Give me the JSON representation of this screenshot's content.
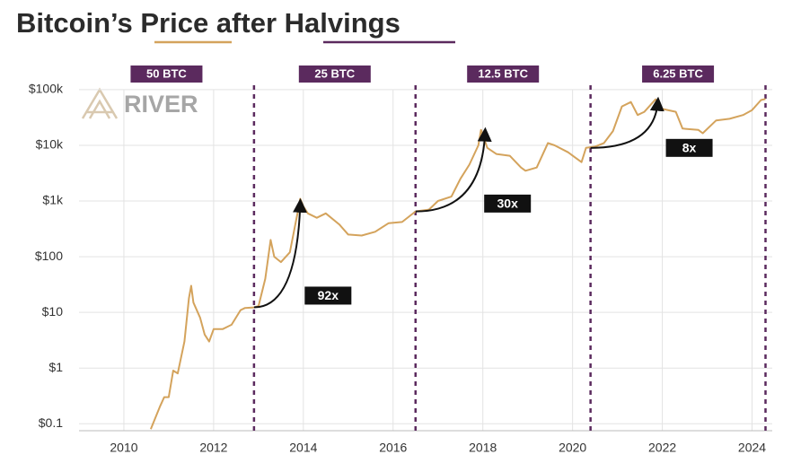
{
  "chart_data": {
    "type": "line",
    "title": "Bitcoin’s Price after Halvings",
    "logo": "RIVER",
    "log_y": true,
    "grid": true,
    "xlim": [
      2009.0,
      2024.45
    ],
    "xticks": [
      2010,
      2012,
      2014,
      2016,
      2018,
      2020,
      2022,
      2024
    ],
    "ylim": [
      0.075,
      150000
    ],
    "yticks": [
      {
        "value": 0.1,
        "label": "$0.1"
      },
      {
        "value": 1,
        "label": "$1"
      },
      {
        "value": 10,
        "label": "$10"
      },
      {
        "value": 100,
        "label": "$100"
      },
      {
        "value": 1000,
        "label": "$1k"
      },
      {
        "value": 10000,
        "label": "$10k"
      },
      {
        "value": 100000,
        "label": "$100k"
      }
    ],
    "halvings": {
      "x": [
        2012.9,
        2016.5,
        2020.4,
        2024.3
      ],
      "labels": [
        "50 BTC",
        "25 BTC",
        "12.5 BTC",
        "6.25 BTC"
      ],
      "color": "#5b2a5e"
    },
    "series": [
      {
        "name": "Price",
        "color": "#d4a35c",
        "x": [
          2010.6,
          2010.8,
          2010.9,
          2011.0,
          2011.1,
          2011.2,
          2011.35,
          2011.45,
          2011.5,
          2011.55,
          2011.7,
          2011.8,
          2011.9,
          2012.0,
          2012.2,
          2012.4,
          2012.6,
          2012.7,
          2012.9,
          2013.0,
          2013.15,
          2013.27,
          2013.35,
          2013.5,
          2013.7,
          2013.9,
          2013.93,
          2014.0,
          2014.1,
          2014.3,
          2014.5,
          2014.8,
          2015.0,
          2015.3,
          2015.6,
          2015.9,
          2016.2,
          2016.5,
          2016.8,
          2017.0,
          2017.3,
          2017.5,
          2017.7,
          2017.9,
          2017.96,
          2018.1,
          2018.3,
          2018.6,
          2018.85,
          2018.95,
          2019.2,
          2019.45,
          2019.6,
          2019.9,
          2020.2,
          2020.3,
          2020.5,
          2020.7,
          2020.9,
          2021.0,
          2021.1,
          2021.3,
          2021.45,
          2021.6,
          2021.85,
          2022.0,
          2022.3,
          2022.45,
          2022.8,
          2022.9,
          2023.2,
          2023.5,
          2023.8,
          2024.0,
          2024.2,
          2024.3
        ],
        "values": [
          0.08,
          0.2,
          0.3,
          0.3,
          0.9,
          0.8,
          3,
          18,
          30,
          15,
          8,
          4,
          3,
          5,
          5,
          6,
          11,
          12,
          12.3,
          13,
          40,
          200,
          100,
          80,
          120,
          800,
          1100,
          800,
          600,
          500,
          600,
          380,
          250,
          240,
          280,
          400,
          420,
          650,
          700,
          1000,
          1200,
          2500,
          4500,
          10000,
          19000,
          9000,
          7000,
          6500,
          4000,
          3500,
          4000,
          11000,
          10000,
          7500,
          5000,
          9000,
          9500,
          11000,
          18000,
          30000,
          50000,
          60000,
          35000,
          40000,
          67000,
          45000,
          40000,
          20000,
          19000,
          16500,
          28000,
          30000,
          35000,
          43000,
          65000,
          68000
        ]
      }
    ],
    "annotations": [
      {
        "text": "92x",
        "x": 2014.55,
        "y": 20,
        "from": [
          2012.9,
          12.3
        ],
        "to": [
          2013.93,
          900
        ]
      },
      {
        "text": "30x",
        "x": 2018.55,
        "y": 900,
        "from": [
          2016.5,
          650
        ],
        "to": [
          2018.05,
          17000
        ]
      },
      {
        "text": "8x",
        "x": 2022.6,
        "y": 9000,
        "from": [
          2020.4,
          9000
        ],
        "to": [
          2021.9,
          60000
        ]
      }
    ]
  }
}
